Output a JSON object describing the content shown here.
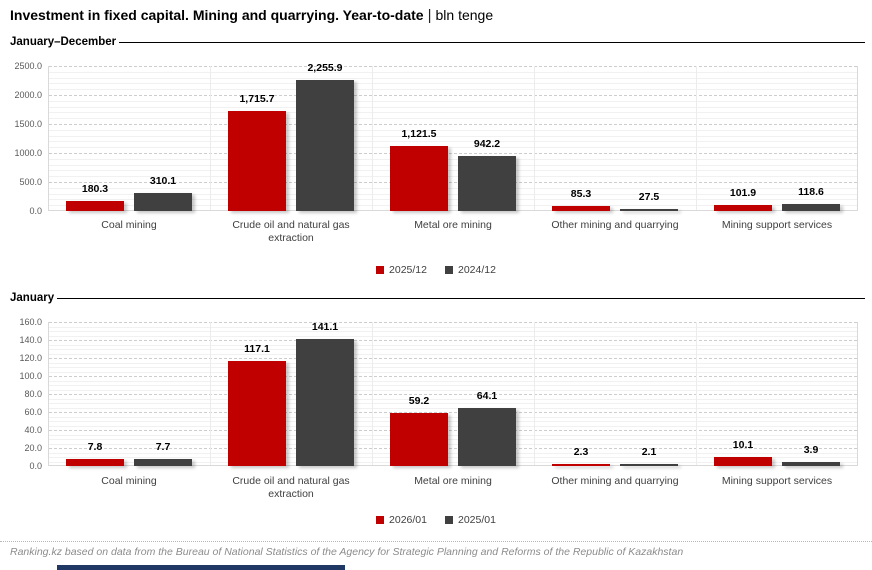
{
  "title": {
    "main": "Investment in fixed capital. Mining and quarrying. Year-to-date",
    "separator": "|",
    "unit": "bln tenge"
  },
  "footer": "Ranking.kz based on data from the Bureau of National Statistics of the Agency for Strategic Planning and Reforms of the Republic of Kazakhstan",
  "colors": {
    "series_current": "#C00000",
    "series_previous": "#404040",
    "accent_bar": "#203864"
  },
  "chart_data": [
    {
      "type": "bar",
      "title": "January–December",
      "categories": [
        "Coal mining",
        "Crude oil and natural gas extraction",
        "Metal ore mining",
        "Other mining and quarrying",
        "Mining support services"
      ],
      "series": [
        {
          "name": "2025/12",
          "color": "#C00000",
          "values": [
            180.3,
            1715.7,
            1121.5,
            85.3,
            101.9
          ]
        },
        {
          "name": "2024/12",
          "color": "#404040",
          "values": [
            310.1,
            2255.9,
            942.2,
            27.5,
            118.6
          ]
        }
      ],
      "xlabel": "",
      "ylabel": "",
      "ylim": [
        0,
        2500
      ],
      "ytick_step": 500,
      "yminor_step": 100,
      "grid": true,
      "legend_position": "bottom",
      "data_labels": true
    },
    {
      "type": "bar",
      "title": "January",
      "categories": [
        "Coal mining",
        "Crude oil and natural gas extraction",
        "Metal ore mining",
        "Other mining and quarrying",
        "Mining support services"
      ],
      "series": [
        {
          "name": "2026/01",
          "color": "#C00000",
          "values": [
            7.8,
            117.1,
            59.2,
            2.3,
            10.1
          ]
        },
        {
          "name": "2025/01",
          "color": "#404040",
          "values": [
            7.7,
            141.1,
            64.1,
            2.1,
            3.9
          ]
        }
      ],
      "xlabel": "",
      "ylabel": "",
      "ylim": [
        0,
        160
      ],
      "ytick_step": 20,
      "yminor_step": 5,
      "grid": true,
      "legend_position": "bottom",
      "data_labels": true
    }
  ]
}
